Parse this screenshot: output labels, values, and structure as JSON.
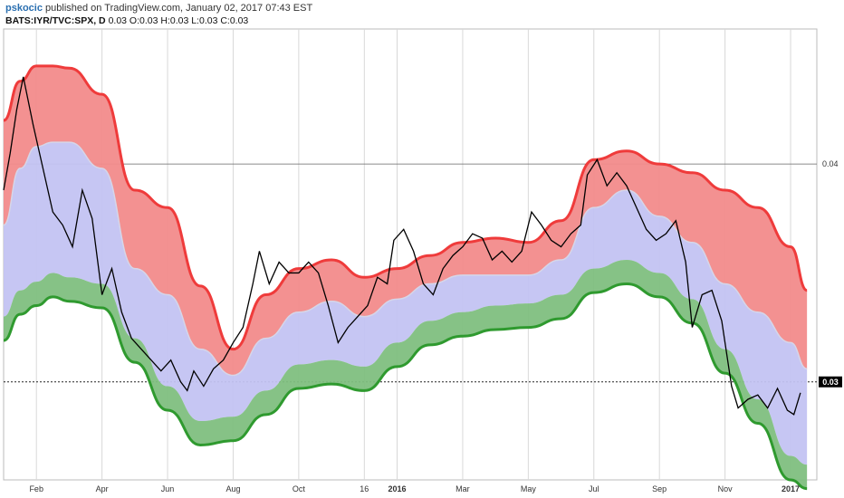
{
  "header": {
    "author": "pskocic",
    "published_text": " published on TradingView.com, January 02, 2017 07:43 EST",
    "symbol_line": "BATS:IYR/TVC:SPX, D",
    "ohlc_text": "0.03 O:0.03 H:0.03 L:0.03 C:0.03"
  },
  "colors": {
    "upper_band": "#ef3b3b",
    "upper_fill": "#f28b8b",
    "middle_fill": "#c3c3f2",
    "lower_band": "#2f9a2f",
    "lower_fill": "#7fbf7f",
    "price_line": "#000000",
    "grid": "#d8d8d8"
  },
  "chart_data": {
    "type": "line",
    "x_tick_labels": [
      "Feb",
      "Apr",
      "Jun",
      "Aug",
      "Oct",
      "16",
      "2016",
      "Mar",
      "May",
      "Jul",
      "Sep",
      "Nov",
      "2017"
    ],
    "x_tick_positions_index": [
      1,
      3,
      5,
      7,
      9,
      11,
      12,
      14,
      16,
      18,
      20,
      22,
      24
    ],
    "y_tick_labels": [
      "0.04"
    ],
    "current_value_label": "0.03",
    "ylim": [
      0.0255,
      0.0462
    ],
    "grid": true,
    "x_range_index": [
      0,
      24.8
    ],
    "series": [
      {
        "values": [
          [
            0,
            0.0388
          ],
          [
            0.2,
            0.0405
          ],
          [
            0.4,
            0.0425
          ],
          [
            0.6,
            0.044
          ],
          [
            0.9,
            0.0418
          ],
          [
            1.2,
            0.0398
          ],
          [
            1.5,
            0.0378
          ],
          [
            1.8,
            0.0372
          ],
          [
            2.1,
            0.0362
          ],
          [
            2.4,
            0.0388
          ],
          [
            2.7,
            0.0375
          ],
          [
            3.0,
            0.034
          ],
          [
            3.3,
            0.0352
          ],
          [
            3.6,
            0.0332
          ],
          [
            3.9,
            0.032
          ],
          [
            4.2,
            0.0315
          ],
          [
            4.5,
            0.031
          ],
          [
            4.8,
            0.0305
          ],
          [
            5.1,
            0.031
          ],
          [
            5.4,
            0.03
          ],
          [
            5.6,
            0.0296
          ],
          [
            5.8,
            0.0305
          ],
          [
            6.1,
            0.0298
          ],
          [
            6.4,
            0.0306
          ],
          [
            6.7,
            0.031
          ],
          [
            7.0,
            0.0318
          ],
          [
            7.3,
            0.0325
          ],
          [
            7.6,
            0.0345
          ],
          [
            7.8,
            0.036
          ],
          [
            8.1,
            0.0345
          ],
          [
            8.4,
            0.0355
          ],
          [
            8.7,
            0.035
          ],
          [
            9.0,
            0.035
          ],
          [
            9.3,
            0.0355
          ],
          [
            9.6,
            0.035
          ],
          [
            9.9,
            0.0335
          ],
          [
            10.2,
            0.0318
          ],
          [
            10.5,
            0.0325
          ],
          [
            10.8,
            0.033
          ],
          [
            11.1,
            0.0335
          ],
          [
            11.4,
            0.0348
          ],
          [
            11.7,
            0.0345
          ],
          [
            11.9,
            0.0365
          ],
          [
            12.2,
            0.037
          ],
          [
            12.5,
            0.036
          ],
          [
            12.8,
            0.0345
          ],
          [
            13.1,
            0.034
          ],
          [
            13.4,
            0.0352
          ],
          [
            13.7,
            0.0358
          ],
          [
            14.0,
            0.0362
          ],
          [
            14.3,
            0.0368
          ],
          [
            14.6,
            0.0366
          ],
          [
            14.9,
            0.0356
          ],
          [
            15.2,
            0.036
          ],
          [
            15.5,
            0.0355
          ],
          [
            15.8,
            0.036
          ],
          [
            16.1,
            0.0378
          ],
          [
            16.4,
            0.0372
          ],
          [
            16.7,
            0.0365
          ],
          [
            17.0,
            0.0362
          ],
          [
            17.3,
            0.0368
          ],
          [
            17.6,
            0.0372
          ],
          [
            17.8,
            0.0395
          ],
          [
            18.1,
            0.0402
          ],
          [
            18.4,
            0.039
          ],
          [
            18.7,
            0.0396
          ],
          [
            19.0,
            0.039
          ],
          [
            19.3,
            0.038
          ],
          [
            19.6,
            0.037
          ],
          [
            19.9,
            0.0365
          ],
          [
            20.2,
            0.0368
          ],
          [
            20.5,
            0.0374
          ],
          [
            20.8,
            0.0355
          ],
          [
            21.0,
            0.0325
          ],
          [
            21.3,
            0.034
          ],
          [
            21.6,
            0.0342
          ],
          [
            21.9,
            0.0328
          ],
          [
            22.2,
            0.0298
          ],
          [
            22.4,
            0.0288
          ],
          [
            22.7,
            0.0292
          ],
          [
            23.0,
            0.0294
          ],
          [
            23.3,
            0.0288
          ],
          [
            23.6,
            0.0297
          ],
          [
            23.9,
            0.0287
          ],
          [
            24.1,
            0.0285
          ],
          [
            24.3,
            0.0295
          ]
        ]
      }
    ],
    "bands": {
      "x": [
        0,
        0.5,
        1,
        1.5,
        2,
        3,
        4,
        5,
        6,
        7,
        8,
        9,
        10,
        11,
        12,
        13,
        14,
        15,
        16,
        17,
        18,
        19,
        20,
        21,
        22,
        23,
        24,
        24.5
      ],
      "upper": [
        0.042,
        0.0438,
        0.0445,
        0.0445,
        0.0444,
        0.0432,
        0.0388,
        0.038,
        0.0344,
        0.0315,
        0.034,
        0.0352,
        0.0356,
        0.0348,
        0.0352,
        0.0358,
        0.0364,
        0.0366,
        0.0364,
        0.0374,
        0.0402,
        0.0406,
        0.04,
        0.0396,
        0.0388,
        0.038,
        0.0362,
        0.0342
      ],
      "middle": [
        0.0372,
        0.0398,
        0.0408,
        0.041,
        0.041,
        0.0398,
        0.0352,
        0.034,
        0.0315,
        0.0303,
        0.032,
        0.0332,
        0.0337,
        0.033,
        0.0338,
        0.0345,
        0.0349,
        0.0349,
        0.0349,
        0.0356,
        0.038,
        0.0388,
        0.0376,
        0.0364,
        0.0345,
        0.0332,
        0.0318,
        0.0306
      ],
      "lower": [
        0.033,
        0.0342,
        0.0346,
        0.035,
        0.0348,
        0.0345,
        0.032,
        0.0298,
        0.0282,
        0.0284,
        0.0296,
        0.0308,
        0.031,
        0.0307,
        0.0318,
        0.0328,
        0.0332,
        0.0335,
        0.0336,
        0.034,
        0.0352,
        0.0356,
        0.035,
        0.0338,
        0.0315,
        0.0292,
        0.0266,
        0.0262
      ]
    }
  }
}
